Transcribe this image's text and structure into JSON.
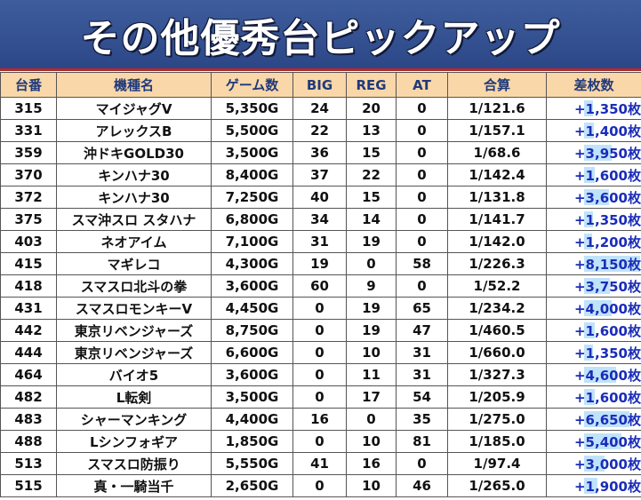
{
  "banner": {
    "title": "その他優秀台ピックアップ"
  },
  "columns": [
    "台番",
    "機種名",
    "ゲーム数",
    "BIG",
    "REG",
    "AT",
    "合算",
    "差枚数"
  ],
  "diff_scale_max": 8150,
  "rows": [
    {
      "no": "315",
      "machine": "マイジャグV",
      "games": "5,350G",
      "big": "24",
      "reg": "20",
      "at": "0",
      "ratio": "1/121.6",
      "diff": "+1,350枚",
      "diff_value": 1350
    },
    {
      "no": "331",
      "machine": "アレックスB",
      "games": "5,500G",
      "big": "22",
      "reg": "13",
      "at": "0",
      "ratio": "1/157.1",
      "diff": "+1,400枚",
      "diff_value": 1400
    },
    {
      "no": "359",
      "machine": "沖ドキGOLD30",
      "games": "3,500G",
      "big": "36",
      "reg": "15",
      "at": "0",
      "ratio": "1/68.6",
      "diff": "+3,950枚",
      "diff_value": 3950
    },
    {
      "no": "370",
      "machine": "キンハナ30",
      "games": "8,400G",
      "big": "37",
      "reg": "22",
      "at": "0",
      "ratio": "1/142.4",
      "diff": "+1,600枚",
      "diff_value": 1600
    },
    {
      "no": "372",
      "machine": "キンハナ30",
      "games": "7,250G",
      "big": "40",
      "reg": "15",
      "at": "0",
      "ratio": "1/131.8",
      "diff": "+3,600枚",
      "diff_value": 3600
    },
    {
      "no": "375",
      "machine": "スマ沖スロ スタハナ",
      "games": "6,800G",
      "big": "34",
      "reg": "14",
      "at": "0",
      "ratio": "1/141.7",
      "diff": "+1,350枚",
      "diff_value": 1350
    },
    {
      "no": "403",
      "machine": "ネオアイム",
      "games": "7,100G",
      "big": "31",
      "reg": "19",
      "at": "0",
      "ratio": "1/142.0",
      "diff": "+1,200枚",
      "diff_value": 1200
    },
    {
      "no": "415",
      "machine": "マギレコ",
      "games": "4,300G",
      "big": "19",
      "reg": "0",
      "at": "58",
      "ratio": "1/226.3",
      "diff": "+8,150枚",
      "diff_value": 8150
    },
    {
      "no": "418",
      "machine": "スマスロ北斗の拳",
      "games": "3,600G",
      "big": "60",
      "reg": "9",
      "at": "0",
      "ratio": "1/52.2",
      "diff": "+3,750枚",
      "diff_value": 3750
    },
    {
      "no": "431",
      "machine": "スマスロモンキーV",
      "games": "4,450G",
      "big": "0",
      "reg": "19",
      "at": "65",
      "ratio": "1/234.2",
      "diff": "+4,000枚",
      "diff_value": 4000
    },
    {
      "no": "442",
      "machine": "東京リベンジャーズ",
      "games": "8,750G",
      "big": "0",
      "reg": "19",
      "at": "47",
      "ratio": "1/460.5",
      "diff": "+1,600枚",
      "diff_value": 1600
    },
    {
      "no": "444",
      "machine": "東京リベンジャーズ",
      "games": "6,600G",
      "big": "0",
      "reg": "10",
      "at": "31",
      "ratio": "1/660.0",
      "diff": "+1,350枚",
      "diff_value": 1350
    },
    {
      "no": "464",
      "machine": "バイオ5",
      "games": "3,600G",
      "big": "0",
      "reg": "11",
      "at": "31",
      "ratio": "1/327.3",
      "diff": "+4,600枚",
      "diff_value": 4600
    },
    {
      "no": "482",
      "machine": "L転剣",
      "games": "3,500G",
      "big": "0",
      "reg": "17",
      "at": "54",
      "ratio": "1/205.9",
      "diff": "+1,600枚",
      "diff_value": 1600
    },
    {
      "no": "483",
      "machine": "シャーマンキング",
      "games": "4,400G",
      "big": "16",
      "reg": "0",
      "at": "35",
      "ratio": "1/275.0",
      "diff": "+6,650枚",
      "diff_value": 6650
    },
    {
      "no": "488",
      "machine": "Lシンフォギア",
      "games": "1,850G",
      "big": "0",
      "reg": "10",
      "at": "81",
      "ratio": "1/185.0",
      "diff": "+5,400枚",
      "diff_value": 5400
    },
    {
      "no": "513",
      "machine": "スマスロ防振り",
      "games": "5,550G",
      "big": "41",
      "reg": "16",
      "at": "0",
      "ratio": "1/97.4",
      "diff": "+3,000枚",
      "diff_value": 3000
    },
    {
      "no": "515",
      "machine": "真・一騎当千",
      "games": "2,650G",
      "big": "0",
      "reg": "10",
      "at": "46",
      "ratio": "1/265.0",
      "diff": "+1,900枚",
      "diff_value": 1900
    }
  ]
}
